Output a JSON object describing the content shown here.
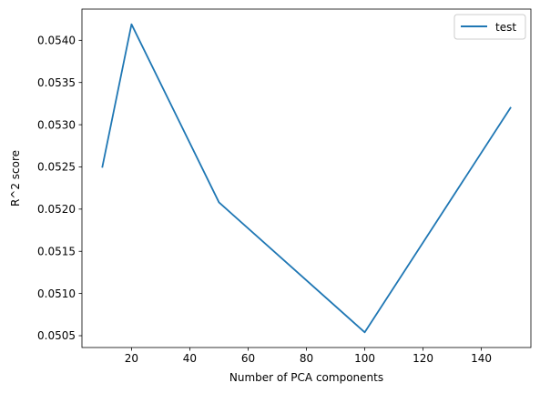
{
  "chart_data": {
    "type": "line",
    "title": "",
    "xlabel": "Number of PCA components",
    "ylabel": "R^2 score",
    "xlim": [
      3,
      157
    ],
    "ylim": [
      0.05036,
      0.05437
    ],
    "xticks": [
      20,
      40,
      60,
      80,
      100,
      120,
      140
    ],
    "xtick_labels": [
      "20",
      "40",
      "60",
      "80",
      "100",
      "120",
      "140"
    ],
    "yticks": [
      0.0505,
      0.051,
      0.0515,
      0.052,
      0.0525,
      0.053,
      0.0535,
      0.054
    ],
    "ytick_labels": [
      "0.0505",
      "0.0510",
      "0.0515",
      "0.0520",
      "0.0525",
      "0.0530",
      "0.0535",
      "0.0540"
    ],
    "grid": false,
    "legend_position": "top-right",
    "series": [
      {
        "name": "test",
        "color": "#1f77b4",
        "x": [
          10,
          20,
          50,
          100,
          150
        ],
        "y": [
          0.0525,
          0.05419,
          0.05208,
          0.05054,
          0.0532
        ]
      }
    ]
  }
}
